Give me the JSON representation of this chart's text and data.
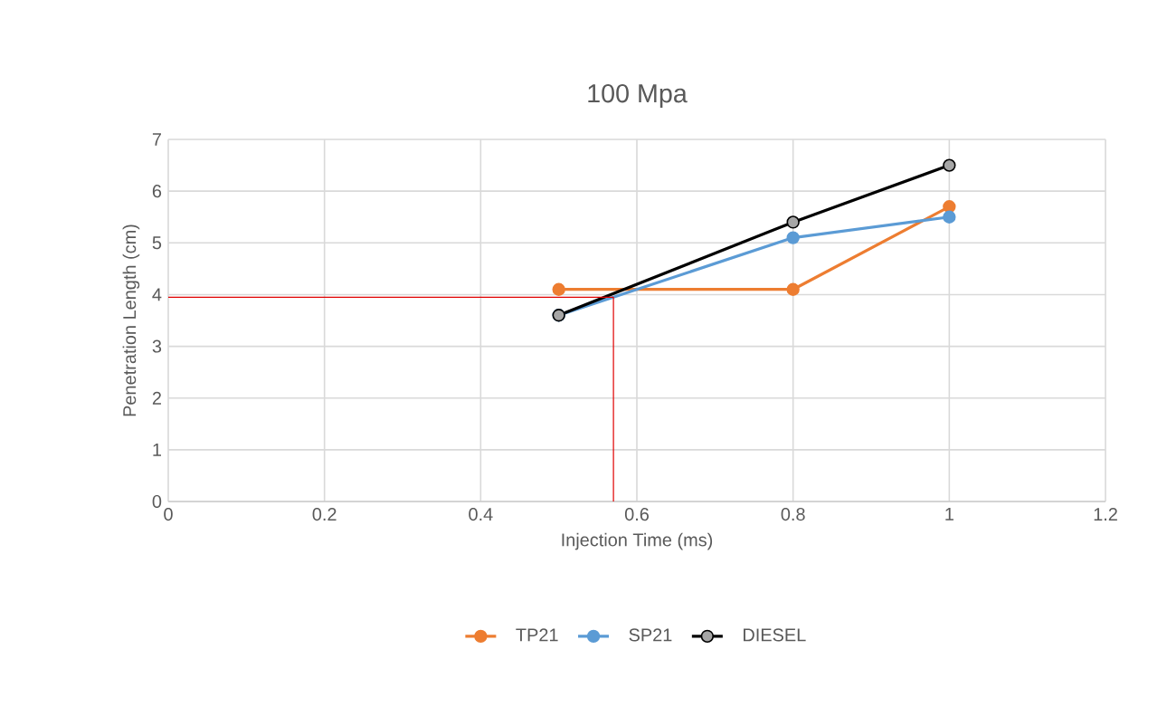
{
  "chart_data": {
    "type": "line",
    "title": "100 Mpa",
    "xlabel": "Injection Time (ms)",
    "ylabel": "Penetration Length (cm)",
    "xlim": [
      0,
      1.2
    ],
    "xticks": [
      0,
      0.2,
      0.4,
      0.6,
      0.8,
      1,
      1.2
    ],
    "ylim": [
      0,
      7
    ],
    "yticks": [
      0,
      1,
      2,
      3,
      4,
      5,
      6,
      7
    ],
    "grid": true,
    "legend": "bottom",
    "marker": "circle",
    "line_style": "solid",
    "series": [
      {
        "name": "TP21",
        "color": "#ed7d31",
        "x": [
          0.5,
          0.8,
          1
        ],
        "values": [
          4.1,
          4.1,
          5.7
        ]
      },
      {
        "name": "SP21",
        "color": "#5b9bd5",
        "x": [
          0.5,
          0.8,
          1
        ],
        "values": [
          3.6,
          5.1,
          5.5
        ]
      },
      {
        "name": "DIESEL",
        "color": "#000000",
        "x": [
          0.5,
          0.8,
          1
        ],
        "values": [
          3.6,
          5.4,
          6.5
        ]
      },
      {
        "color": "#e00000",
        "marker": "none",
        "x": [
          0,
          0.57,
          0.57
        ],
        "values": [
          3.95,
          3.95,
          0
        ]
      }
    ]
  }
}
